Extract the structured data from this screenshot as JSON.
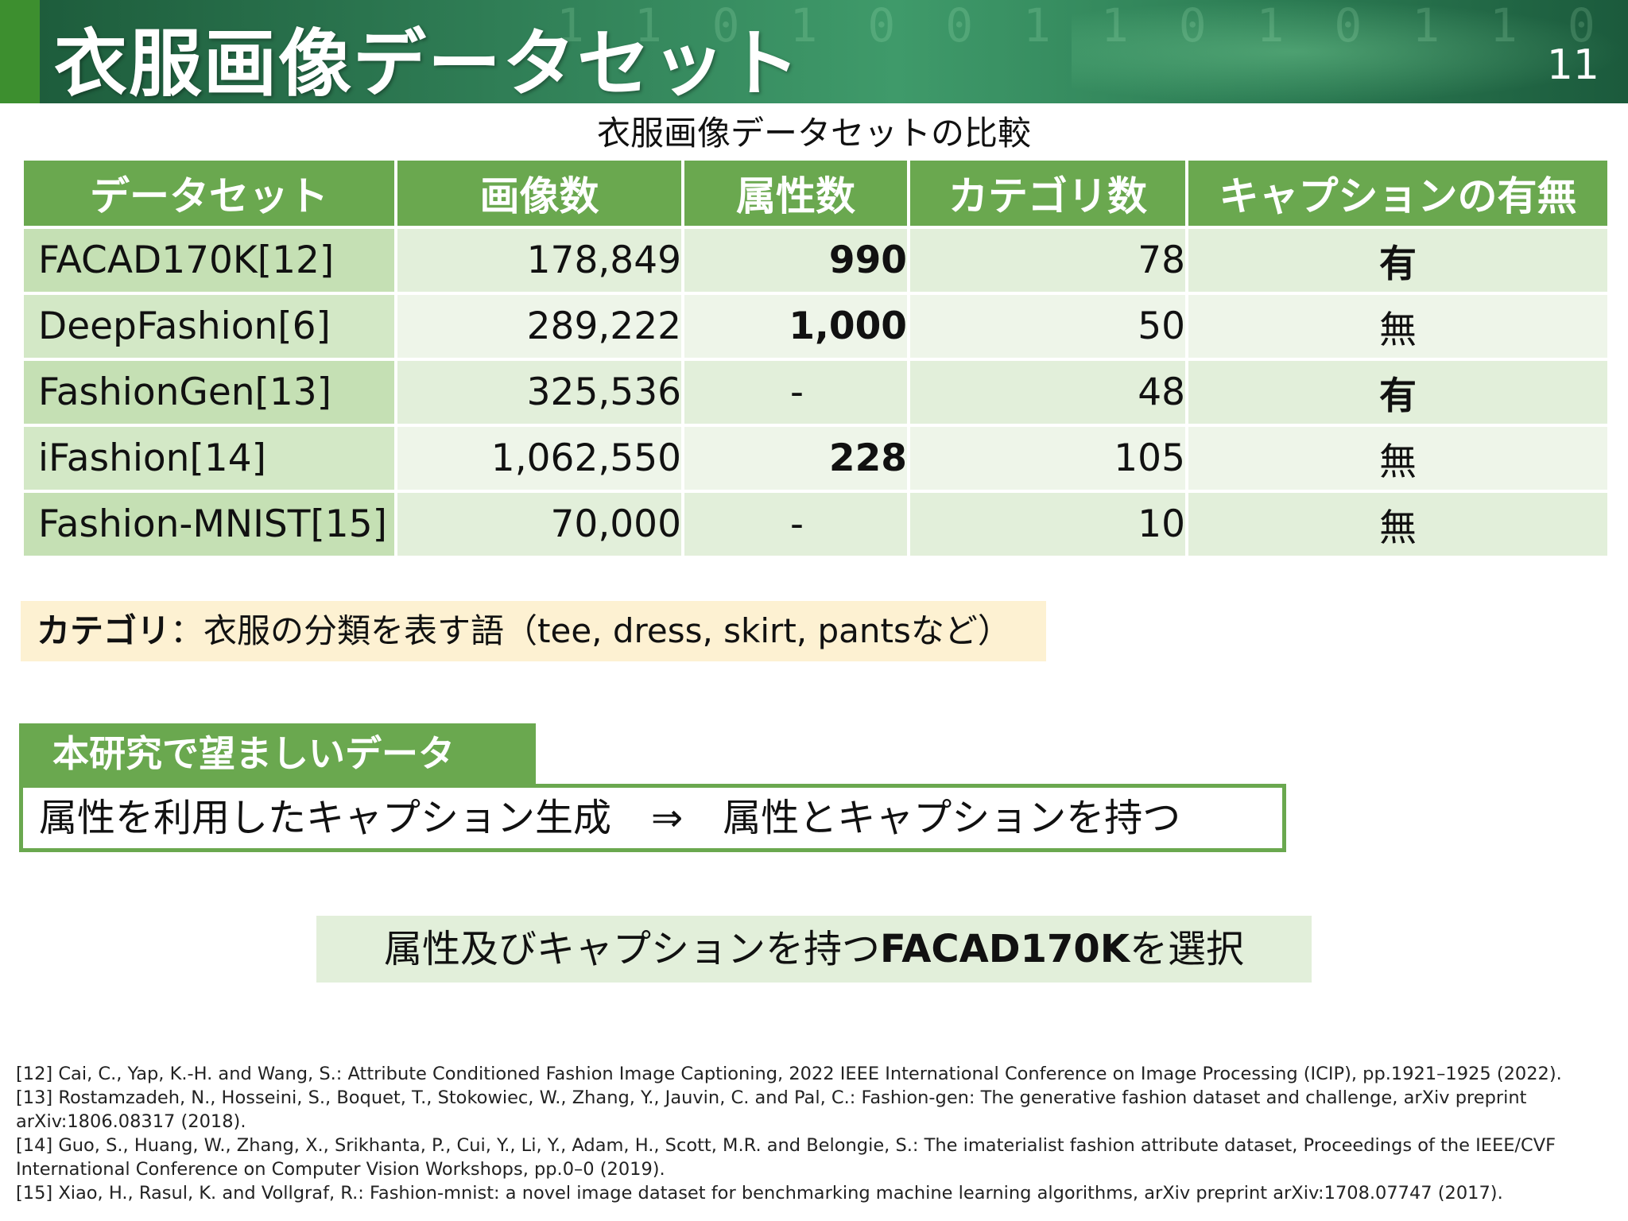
{
  "header": {
    "title": "衣服画像データセット",
    "page_number": "11",
    "background_digits": "1 1 0 1 0 0 1 1 0 1 0 1 1 0 0 1 0 1 1 0 1"
  },
  "table_caption": "衣服画像データセットの比較",
  "table": {
    "headers": [
      "データセット",
      "画像数",
      "属性数",
      "カテゴリ数",
      "キャプションの有無"
    ],
    "rows": [
      {
        "name": "FACAD170K[12]",
        "images": "178,849",
        "attributes": "990",
        "categories": "78",
        "caption": "有"
      },
      {
        "name": "DeepFashion[6]",
        "images": "289,222",
        "attributes": "1,000",
        "categories": "50",
        "caption": "無"
      },
      {
        "name": "FashionGen[13]",
        "images": "325,536",
        "attributes": "-",
        "categories": "48",
        "caption": "有"
      },
      {
        "name": "iFashion[14]",
        "images": "1,062,550",
        "attributes": "228",
        "categories": "105",
        "caption": "無"
      },
      {
        "name": "Fashion-MNIST[15]",
        "images": "70,000",
        "attributes": "-",
        "categories": "10",
        "caption": "無"
      }
    ]
  },
  "category_note": {
    "term": "カテゴリ",
    "text": "：衣服の分類を表す語（tee, dress, skirt, pantsなど）"
  },
  "desired": {
    "label": "本研究で望ましいデータ",
    "left": "属性を利用したキャプション生成",
    "arrow": "⇒",
    "right": "属性とキャプションを持つ"
  },
  "conclusion": {
    "prefix": "属性及びキャプションを持つ",
    "dataset": "FACAD170K",
    "suffix": "を選択"
  },
  "references": [
    "[12] Cai, C., Yap, K.-H. and Wang, S.: Attribute Conditioned Fashion Image Captioning, 2022 IEEE International Conference on Image Processing (ICIP), pp.1921–1925 (2022).",
    "[13] Rostamzadeh, N., Hosseini, S., Boquet, T., Stokowiec, W., Zhang, Y., Jauvin, C. and Pal, C.: Fashion-gen: The generative fashion dataset and challenge, arXiv preprint arXiv:1806.08317 (2018).",
    "[14] Guo, S., Huang, W., Zhang, X., Srikhanta, P., Cui, Y., Li, Y., Adam, H., Scott, M.R. and Belongie, S.: The imaterialist fashion attribute dataset, Proceedings of the IEEE/CVF International Conference on Computer Vision Workshops, pp.0–0 (2019).",
    "[15] Xiao, H., Rasul, K. and Vollgraf, R.: Fashion-mnist: a novel image dataset for benchmarking machine learning algorithms, arXiv preprint arXiv:1708.07747 (2017)."
  ]
}
